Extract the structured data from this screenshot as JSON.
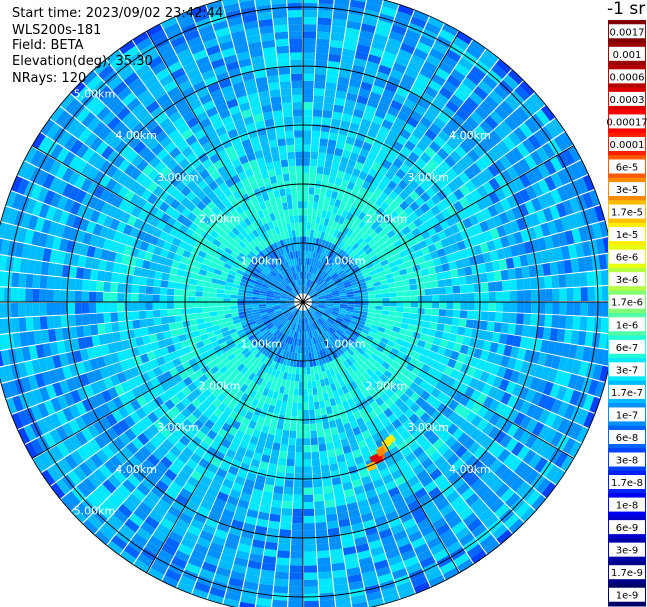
{
  "header": {
    "start_time": "Start time: 2023/09/02 23:42:44",
    "instrument": "WLS200s-181",
    "field": "Field: BETA",
    "elevation": "Elevation(deg): 35.30",
    "nrays": "NRays: 120"
  },
  "colorbar": {
    "title": "-1 sr",
    "labels": [
      "0.0017",
      "0.001",
      "0.0006",
      "0.0003",
      "0.00017",
      "0.0001",
      "6e-5",
      "3e-5",
      "1.7e-5",
      "1e-5",
      "6e-6",
      "3e-6",
      "1.7e-6",
      "1e-6",
      "6e-7",
      "3e-7",
      "1.7e-7",
      "1e-7",
      "6e-8",
      "3e-8",
      "1.7e-8",
      "1e-8",
      "6e-9",
      "3e-9",
      "1.7e-9",
      "1e-9"
    ],
    "colors": [
      "#800000",
      "#9a0000",
      "#b40000",
      "#d80000",
      "#ff0000",
      "#ff2000",
      "#ff5a00",
      "#ff8a00",
      "#ffbe00",
      "#ffee00",
      "#e6ff10",
      "#b4ff42",
      "#82ff74",
      "#50ffa6",
      "#20ffd6",
      "#00e8ff",
      "#00bcff",
      "#0090ff",
      "#0064ff",
      "#0040ff",
      "#0020ff",
      "#0000f0",
      "#0000cc",
      "#0000aa",
      "#000088",
      "#000066"
    ]
  },
  "chart_data": {
    "type": "polar_ppi",
    "field": "BETA",
    "nrays": 120,
    "range_rings_km": [
      1,
      2,
      3,
      4,
      5
    ],
    "ring_labels": [
      "1.00km",
      "2.00km",
      "3.00km",
      "4.00km",
      "5.00km"
    ],
    "max_range_km": 5.3,
    "azimuth_gridlines_deg": [
      0,
      30,
      60,
      90,
      120,
      150,
      180,
      210,
      240,
      270,
      300,
      330
    ],
    "notable_feature": {
      "description_value": "3e-5 to 1.7e-5",
      "azimuth_deg": 155,
      "range_km": 2.9
    }
  }
}
